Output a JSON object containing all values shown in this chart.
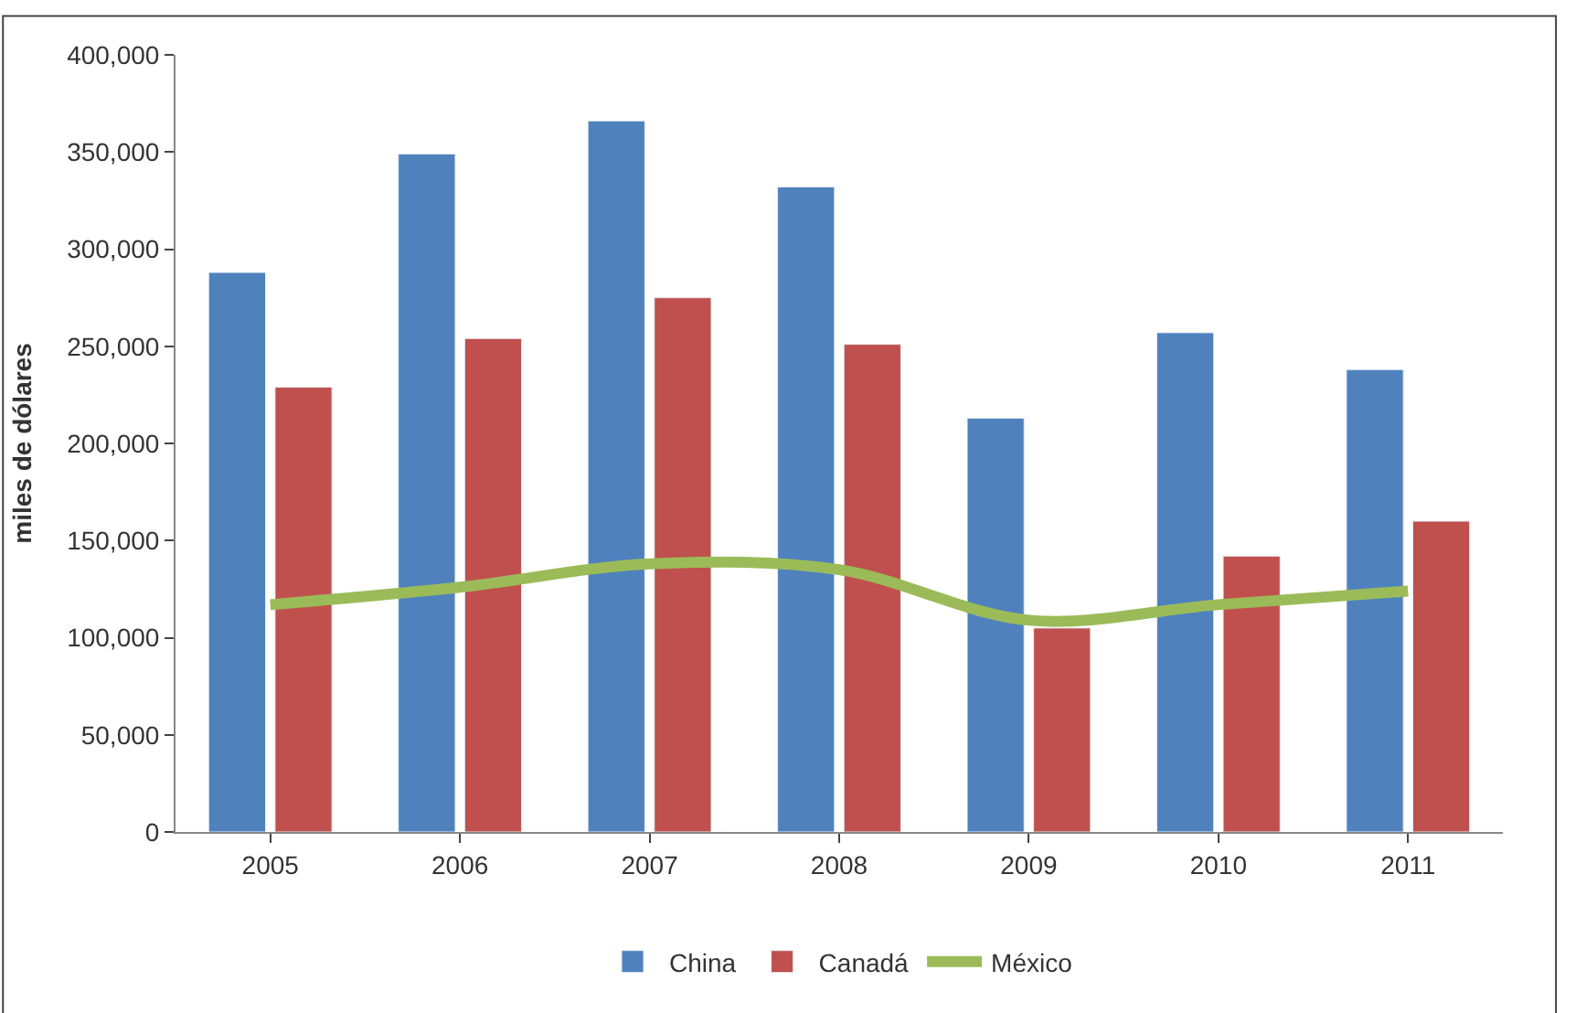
{
  "chart_data": {
    "type": "bar",
    "ylabel": "miles de dólares",
    "categories": [
      "2005",
      "2006",
      "2007",
      "2008",
      "2009",
      "2010",
      "2011"
    ],
    "series": [
      {
        "name": "China",
        "color": "#4f81bd",
        "values": [
          288000,
          349000,
          366000,
          332000,
          213000,
          257000,
          238000
        ]
      },
      {
        "name": "Canadá",
        "color": "#c0504d",
        "values": [
          229000,
          254000,
          275000,
          251000,
          105000,
          142000,
          160000
        ]
      },
      {
        "name": "México",
        "type": "line",
        "color": "#9bbb59",
        "values": [
          117000,
          126000,
          138000,
          135000,
          109000,
          117000,
          124000
        ]
      }
    ],
    "ylim": [
      0,
      400000
    ],
    "yticks": [
      {
        "value": 0,
        "label": "0"
      },
      {
        "value": 50000,
        "label": "50,000"
      },
      {
        "value": 100000,
        "label": "100,000"
      },
      {
        "value": 150000,
        "label": "150,000"
      },
      {
        "value": 200000,
        "label": "200,000"
      },
      {
        "value": 250000,
        "label": "250,000"
      },
      {
        "value": 300000,
        "label": "300,000"
      },
      {
        "value": 350000,
        "label": "350,000"
      },
      {
        "value": 400000,
        "label": "400,000"
      }
    ],
    "legend": "bottom",
    "marker": "none"
  }
}
